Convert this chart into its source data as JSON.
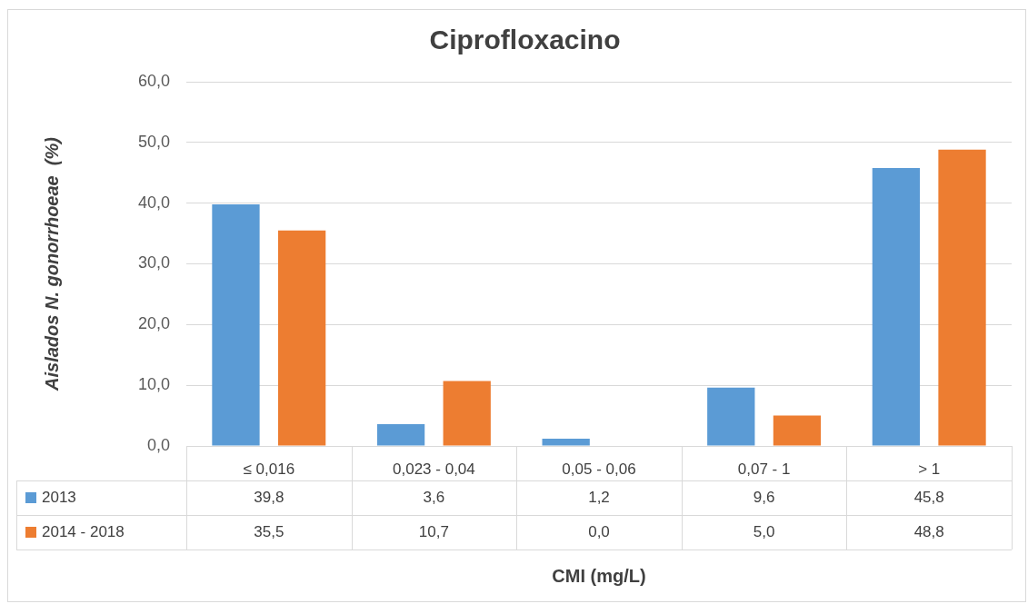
{
  "chart_data": {
    "type": "bar",
    "title": "Ciprofloxacino",
    "xlabel": "CMI (mg/L)",
    "ylabel": "Aislados N. gonorrhoeae  (%)",
    "categories": [
      "≤ 0,016",
      "0,023 - 0,04",
      "0,05 - 0,06",
      "0,07 - 1",
      "> 1"
    ],
    "series": [
      {
        "name": "2013",
        "color": "#5b9bd5",
        "values": [
          39.8,
          3.6,
          1.2,
          9.6,
          45.8
        ],
        "value_labels": [
          "39,8",
          "3,6",
          "1,2",
          "9,6",
          "45,8"
        ]
      },
      {
        "name": "2014 - 2018",
        "color": "#ed7d31",
        "values": [
          35.5,
          10.7,
          0.0,
          5.0,
          48.8
        ],
        "value_labels": [
          "35,5",
          "10,7",
          "0,0",
          "5,0",
          "48,8"
        ]
      }
    ],
    "ylim": [
      0,
      60
    ],
    "yticks": [
      {
        "value": 0,
        "label": "0,0"
      },
      {
        "value": 10,
        "label": "10,0"
      },
      {
        "value": 20,
        "label": "20,0"
      },
      {
        "value": 30,
        "label": "30,0"
      },
      {
        "value": 40,
        "label": "40,0"
      },
      {
        "value": 50,
        "label": "50,0"
      },
      {
        "value": 60,
        "label": "60,0"
      }
    ],
    "grid": "y",
    "legend": "bottom"
  }
}
